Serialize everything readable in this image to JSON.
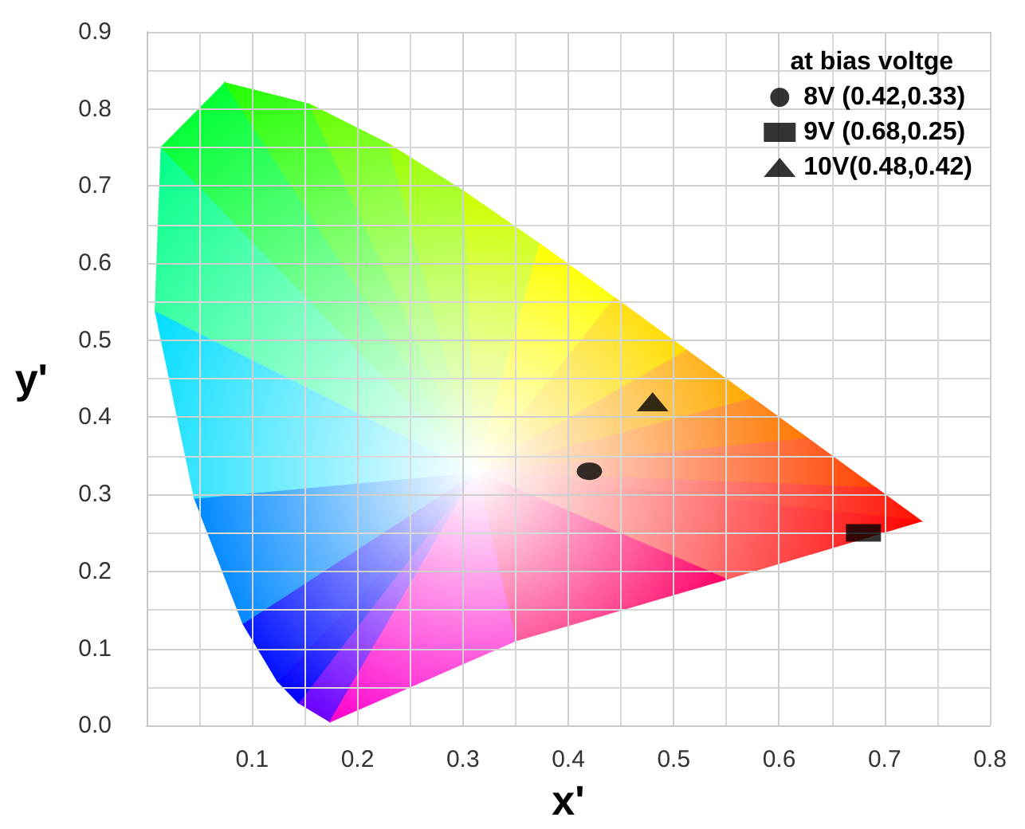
{
  "chart_data": {
    "type": "scatter",
    "xlabel": "x'",
    "ylabel": "y'",
    "legend_title": "at bias voltge",
    "xlim": [
      0,
      0.8
    ],
    "ylim": [
      0,
      0.9
    ],
    "xticks": [
      {
        "value": 0,
        "label": null
      },
      {
        "value": 0.1,
        "label": "0.1"
      },
      {
        "value": 0.2,
        "label": "0.2"
      },
      {
        "value": 0.3,
        "label": "0.3"
      },
      {
        "value": 0.4,
        "label": "0.4"
      },
      {
        "value": 0.5,
        "label": "0.5"
      },
      {
        "value": 0.6,
        "label": "0.6"
      },
      {
        "value": 0.7,
        "label": "0.7"
      },
      {
        "value": 0.8,
        "label": "0.8"
      }
    ],
    "yticks": [
      {
        "value": 0,
        "label": "0.0"
      },
      {
        "value": 0.1,
        "label": "0.1"
      },
      {
        "value": 0.2,
        "label": "0.2"
      },
      {
        "value": 0.3,
        "label": "0.3"
      },
      {
        "value": 0.4,
        "label": "0.4"
      },
      {
        "value": 0.5,
        "label": "0.5"
      },
      {
        "value": 0.6,
        "label": "0.6"
      },
      {
        "value": 0.7,
        "label": "0.7"
      },
      {
        "value": 0.8,
        "label": "0.8"
      },
      {
        "value": 0.9,
        "label": "0.9"
      }
    ],
    "grid": true,
    "legend": "top right",
    "series": [
      {
        "name": "8V (0.42,0.33)",
        "color": "#000000",
        "marker": "circle",
        "x": [
          0.42
        ],
        "values": [
          0.33
        ]
      },
      {
        "name": "9V (0.68,0.25)",
        "color": "#000000",
        "marker": "square",
        "x": [
          0.68
        ],
        "values": [
          0.25
        ]
      },
      {
        "name": "10V(0.48,0.42)",
        "color": "#000000",
        "marker": "triangle",
        "x": [
          0.48
        ],
        "values": [
          0.42
        ]
      }
    ]
  }
}
